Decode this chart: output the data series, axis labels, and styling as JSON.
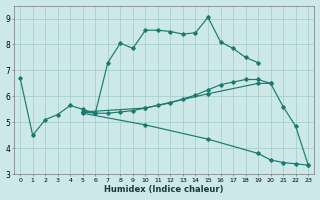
{
  "xlabel": "Humidex (Indice chaleur)",
  "bg_color": "#cce8e8",
  "grid_color": "#aacece",
  "line_color": "#1a7a6e",
  "xlim": [
    -0.5,
    23.5
  ],
  "ylim": [
    3.0,
    9.5
  ],
  "xticks": [
    0,
    1,
    2,
    3,
    4,
    5,
    6,
    7,
    8,
    9,
    10,
    11,
    12,
    13,
    14,
    15,
    16,
    17,
    18,
    19,
    20,
    21,
    22,
    23
  ],
  "yticks": [
    3,
    4,
    5,
    6,
    7,
    8,
    9
  ],
  "line1_x": [
    0,
    1,
    2,
    3,
    4,
    5,
    6,
    7,
    8,
    9,
    10,
    11,
    12,
    13,
    14,
    15,
    16,
    17,
    18,
    19
  ],
  "line1_y": [
    6.7,
    4.5,
    5.1,
    5.3,
    5.65,
    5.5,
    5.35,
    7.3,
    8.05,
    7.85,
    8.55,
    8.55,
    8.5,
    8.4,
    8.45,
    9.05,
    8.1,
    7.85,
    7.5,
    7.3
  ],
  "line2_x": [
    5,
    6,
    7,
    8,
    9,
    10,
    11,
    12,
    13,
    14,
    15,
    16,
    17,
    18,
    19,
    20
  ],
  "line2_y": [
    5.4,
    5.35,
    5.35,
    5.4,
    5.45,
    5.55,
    5.65,
    5.75,
    5.9,
    6.05,
    6.25,
    6.45,
    6.55,
    6.65,
    6.65,
    6.5
  ],
  "line3_x": [
    5,
    10,
    15,
    19,
    20,
    21,
    22,
    23
  ],
  "line3_y": [
    5.4,
    5.55,
    6.1,
    6.5,
    6.5,
    5.6,
    4.85,
    3.35
  ],
  "line4_x": [
    5,
    10,
    15,
    19,
    20,
    21,
    22,
    23
  ],
  "line4_y": [
    5.35,
    4.9,
    4.35,
    3.8,
    3.55,
    3.45,
    3.4,
    3.35
  ]
}
